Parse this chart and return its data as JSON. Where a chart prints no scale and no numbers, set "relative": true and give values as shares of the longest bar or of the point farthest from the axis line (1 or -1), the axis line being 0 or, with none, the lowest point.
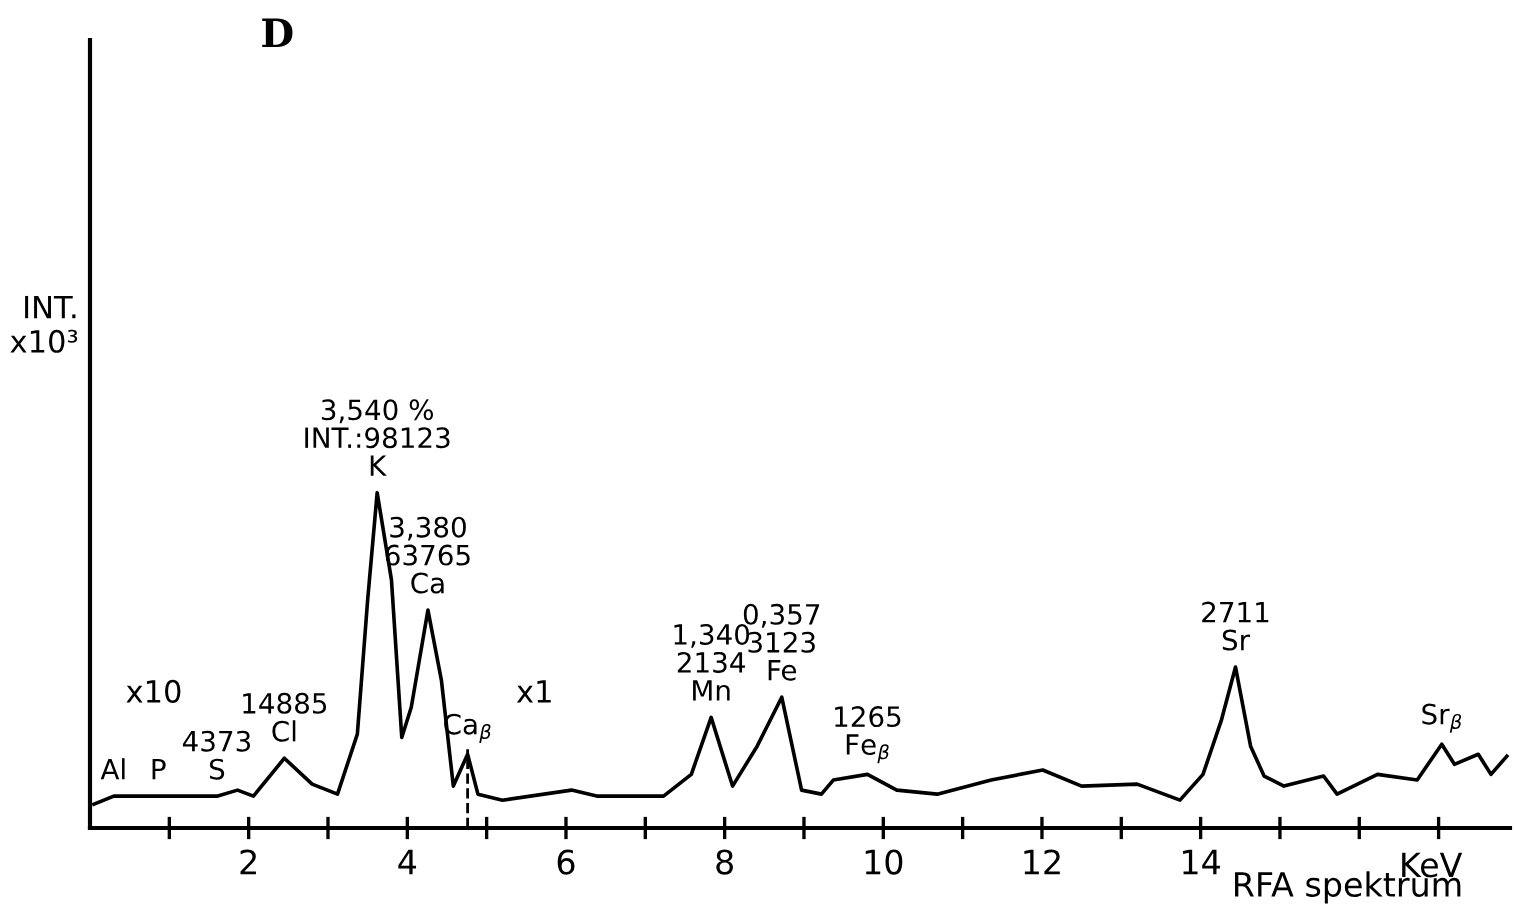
{
  "chart_data": {
    "type": "line",
    "title": "D",
    "xlabel": "KeV",
    "relative": true,
    "x": [
      0.05,
      0.3,
      0.86,
      1.6,
      1.86,
      2.06,
      2.45,
      2.8,
      3.12,
      3.37,
      3.5,
      3.62,
      3.8,
      3.93,
      4.05,
      4.26,
      4.43,
      4.58,
      4.76,
      4.89,
      5.2,
      6.07,
      6.4,
      7.23,
      7.58,
      7.83,
      8.1,
      8.41,
      8.72,
      8.97,
      9.22,
      9.37,
      9.8,
      10.17,
      10.68,
      11.36,
      12.01,
      12.5,
      13.2,
      13.74,
      14.03,
      14.26,
      14.44,
      14.63,
      14.8,
      15.05,
      15.55,
      15.72,
      16.23,
      16.73,
      17.04,
      17.2,
      17.5,
      17.66,
      17.86
    ],
    "series": [
      {
        "color": "#000000",
        "values": [
          0.071,
          0.095,
          0.095,
          0.095,
          0.113,
          0.095,
          0.208,
          0.131,
          0.101,
          0.28,
          0.68,
          1.0,
          0.74,
          0.27,
          0.36,
          0.65,
          0.44,
          0.125,
          0.22,
          0.101,
          0.083,
          0.113,
          0.095,
          0.095,
          0.16,
          0.33,
          0.125,
          0.244,
          0.39,
          0.113,
          0.101,
          0.143,
          0.16,
          0.113,
          0.101,
          0.143,
          0.173,
          0.125,
          0.131,
          0.083,
          0.16,
          0.32,
          0.48,
          0.244,
          0.155,
          0.125,
          0.155,
          0.101,
          0.16,
          0.143,
          0.25,
          0.19,
          0.22,
          0.16,
          0.214
        ]
      }
    ],
    "xlim": [
      0,
      17.9
    ],
    "xticks": [
      {
        "value": 1,
        "label": null
      },
      2,
      {
        "value": 3,
        "label": null
      },
      4,
      {
        "value": 5,
        "label": null
      },
      6,
      {
        "value": 7,
        "label": null
      },
      8,
      {
        "value": 9,
        "label": null
      },
      10,
      {
        "value": 11,
        "label": null
      },
      12,
      {
        "value": 13,
        "label": null
      },
      14,
      {
        "value": 15,
        "label": null
      },
      {
        "value": 16,
        "label": null
      },
      {
        "value": 17,
        "label": null
      }
    ],
    "ref_lines": [
      {
        "axis": "x",
        "value": 4.76,
        "line_style": "dashed",
        "color": "#000000"
      }
    ],
    "annotations": [
      {
        "text": "3,540 %\nINT.:98123\nK",
        "x": 3.62,
        "y": 1.0
      },
      {
        "text": "3,380\n63765\nCa",
        "x": 4.26,
        "y": 0.65
      },
      {
        "text": "Ca$_{β}$",
        "x": 4.76,
        "y": 0.22
      },
      {
        "text": "14885\nCl",
        "x": 2.45,
        "y": 0.208
      },
      {
        "text": "4373\nS",
        "x": 1.6,
        "y": 0.095
      },
      {
        "text": "P",
        "x": 0.86,
        "y": 0.095
      },
      {
        "text": "Al",
        "x": 0.3,
        "y": 0.095
      },
      {
        "text": "1,340\n2134\nMn",
        "x": 7.83,
        "y": 0.33
      },
      {
        "text": "0,357\n3123\nFe",
        "x": 8.72,
        "y": 0.39
      },
      {
        "text": "1265\nFe$_{β}$",
        "x": 9.8,
        "y": 0.16
      },
      {
        "text": "2711\nSr",
        "x": 14.44,
        "y": 0.48
      },
      {
        "text": "Sr$_{β}$",
        "x": 17.04,
        "y": 0.25
      },
      "x10",
      "x1",
      "RFA spektrum",
      "INT.\nx10³"
    ],
    "grid": false,
    "legend": false
  }
}
